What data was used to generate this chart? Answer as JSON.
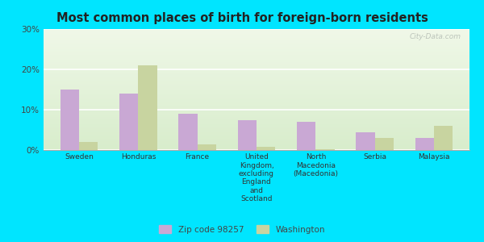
{
  "title": "Most common places of birth for foreign-born residents",
  "categories": [
    "Sweden",
    "Honduras",
    "France",
    "United\nKingdom,\nexcluding\nEngland\nand\nScotland",
    "North\nMacedonia\n(Macedonia)",
    "Serbia",
    "Malaysia"
  ],
  "zip_values": [
    15,
    14,
    9,
    7.5,
    7,
    4.5,
    3
  ],
  "wa_values": [
    2,
    21,
    1.5,
    0.8,
    0.3,
    3,
    6
  ],
  "zip_color": "#c9a8d4",
  "wa_color": "#c8d4a0",
  "ylim": [
    0,
    30
  ],
  "yticks": [
    0,
    10,
    20,
    30
  ],
  "ytick_labels": [
    "0%",
    "10%",
    "20%",
    "30%"
  ],
  "bg_color": "#eef5e0",
  "outer_bg": "#00e5ff",
  "legend_zip_label": "Zip code 98257",
  "legend_wa_label": "Washington",
  "watermark": "City-Data.com"
}
